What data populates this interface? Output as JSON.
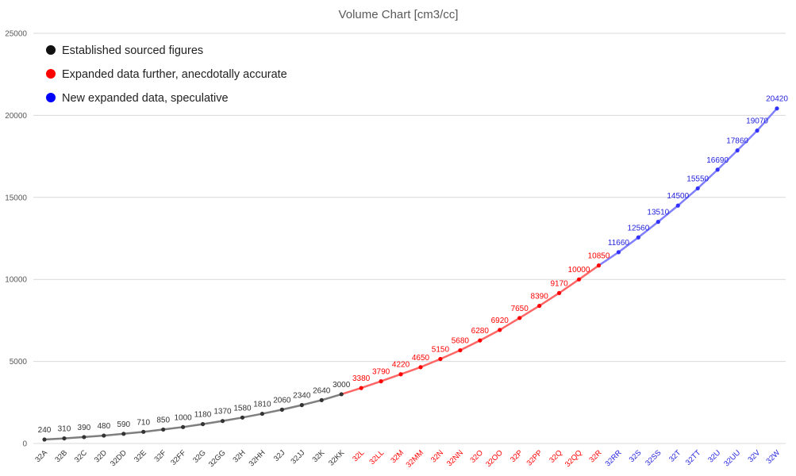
{
  "chart_data": {
    "type": "line",
    "title": "Volume Chart [cm3/cc]",
    "xlabel": "",
    "ylabel": "",
    "ylim": [
      0,
      25000
    ],
    "yticks": [
      0,
      5000,
      10000,
      15000,
      20000,
      25000
    ],
    "grid": true,
    "legend_position": "top-left",
    "legend": [
      {
        "label": "Established sourced figures",
        "color": "#111111"
      },
      {
        "label": "Expanded data further, anecdotally accurate",
        "color": "#ff0000"
      },
      {
        "label": "New expanded data, speculative",
        "color": "#0000ff"
      }
    ],
    "categories": [
      "32A",
      "32B",
      "32C",
      "32D",
      "32DD",
      "32E",
      "32F",
      "32FF",
      "32G",
      "32GG",
      "32H",
      "32HH",
      "32J",
      "32JJ",
      "32K",
      "32KK",
      "32L",
      "32LL",
      "32M",
      "32MM",
      "32N",
      "32NN",
      "32O",
      "32OO",
      "32P",
      "32PP",
      "32Q",
      "32QQ",
      "32R",
      "32RR",
      "32S",
      "32SS",
      "32T",
      "32TT",
      "32U",
      "32UU",
      "32V",
      "32W"
    ],
    "values": [
      240,
      310,
      390,
      480,
      590,
      710,
      850,
      1000,
      1180,
      1370,
      1580,
      1810,
      2060,
      2340,
      2640,
      3000,
      3380,
      3790,
      4220,
      4650,
      5150,
      5680,
      6280,
      6920,
      7650,
      8390,
      9170,
      10000,
      10850,
      11660,
      12560,
      13510,
      14500,
      15550,
      16690,
      17860,
      19070,
      20420
    ],
    "series": [
      {
        "range": [
          0,
          15
        ],
        "point_color": "#333333",
        "line_color": "#7f7f7f",
        "label_color": "#333333"
      },
      {
        "range": [
          15,
          28
        ],
        "point_color": "#ff0000",
        "line_color": "#ff6666",
        "label_color": "#ff0000"
      },
      {
        "range": [
          28,
          37
        ],
        "point_color": "#3333ff",
        "line_color": "#8080ff",
        "label_color": "#1f1fdc"
      }
    ]
  }
}
